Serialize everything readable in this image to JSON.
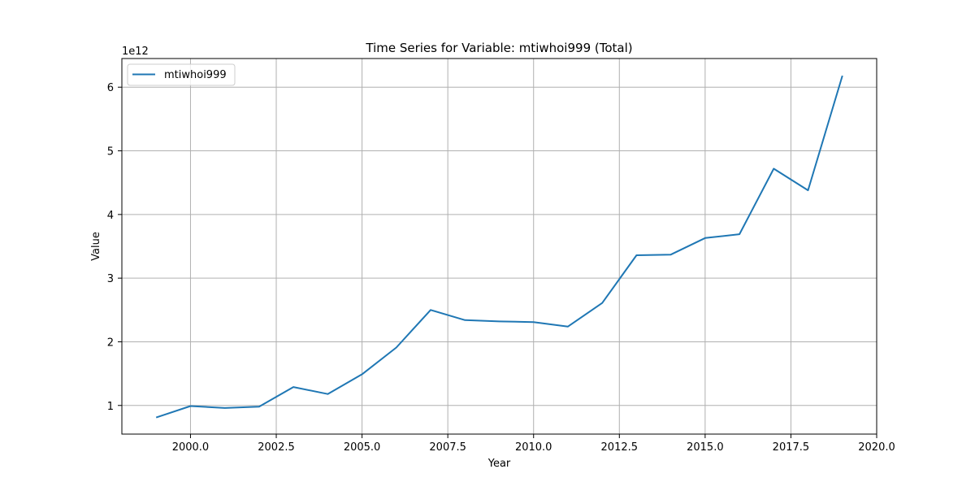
{
  "chart_data": {
    "type": "line",
    "title": "Time Series for Variable: mtiwhoi999 (Total)",
    "xlabel": "Year",
    "ylabel": "Value",
    "y_offset_label": "1e12",
    "xlim": [
      1998,
      2020
    ],
    "ylim": [
      0.55,
      6.45
    ],
    "y_scale_factor": 1000000000000,
    "xticks": [
      2000.0,
      2002.5,
      2005.0,
      2007.5,
      2010.0,
      2012.5,
      2015.0,
      2017.5,
      2020.0
    ],
    "xtick_labels": [
      "2000.0",
      "2002.5",
      "2005.0",
      "2007.5",
      "2010.0",
      "2012.5",
      "2015.0",
      "2017.5",
      "2020.0"
    ],
    "yticks": [
      1,
      2,
      3,
      4,
      5,
      6
    ],
    "ytick_labels": [
      "1",
      "2",
      "3",
      "4",
      "5",
      "6"
    ],
    "grid": true,
    "legend_position": "top-left",
    "series": [
      {
        "name": "mtiwhoi999",
        "color": "#1f77b4",
        "x": [
          1999,
          2000,
          2001,
          2002,
          2003,
          2004,
          2005,
          2006,
          2007,
          2008,
          2009,
          2010,
          2011,
          2012,
          2013,
          2014,
          2015,
          2016,
          2017,
          2018,
          2019
        ],
        "y": [
          0.81,
          0.99,
          0.96,
          0.98,
          1.29,
          1.18,
          1.49,
          1.91,
          2.5,
          2.34,
          2.32,
          2.31,
          2.24,
          2.61,
          3.36,
          3.37,
          3.63,
          3.69,
          4.72,
          4.38,
          6.18
        ]
      }
    ]
  }
}
